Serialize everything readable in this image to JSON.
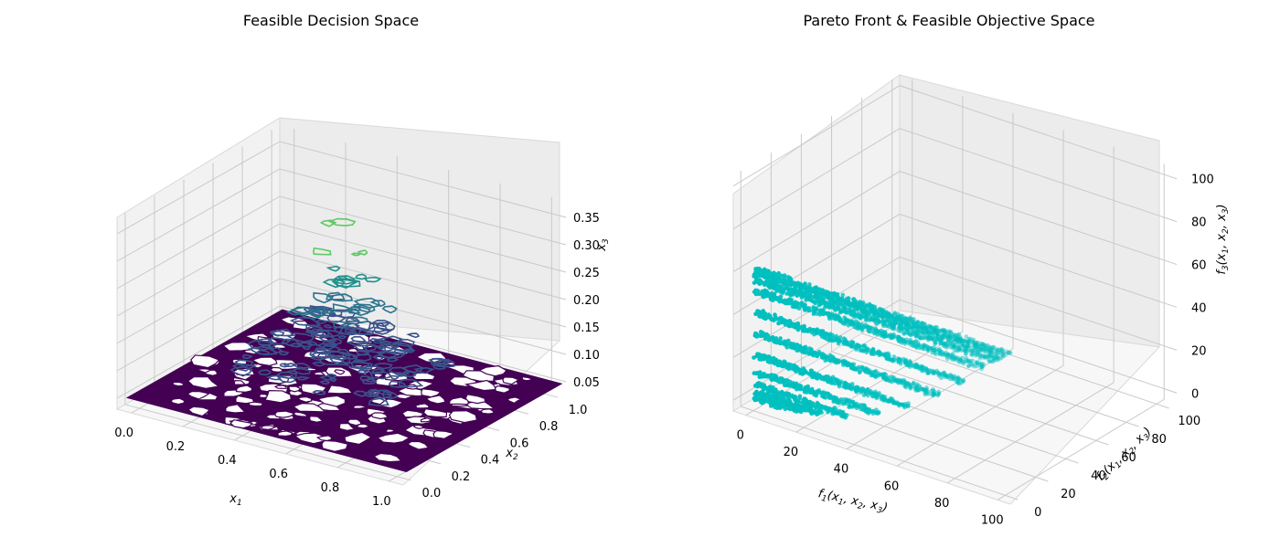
{
  "chart_data": [
    {
      "type": "3d-contour",
      "title": "Feasible Decision Space",
      "xlabel": "x_1",
      "ylabel": "x_2",
      "zlabel": "x_3",
      "xlim": [
        0,
        1
      ],
      "ylim": [
        0,
        1
      ],
      "zlim": [
        0.03,
        0.38
      ],
      "xticks": [
        "0.0",
        "0.2",
        "0.4",
        "0.6",
        "0.8",
        "1.0"
      ],
      "yticks": [
        "0.0",
        "0.2",
        "0.4",
        "0.6",
        "0.8",
        "1.0"
      ],
      "zticks": [
        "0.05",
        "0.10",
        "0.15",
        "0.20",
        "0.25",
        "0.30",
        "0.35"
      ],
      "colormap": [
        "#440154",
        "#3b528b",
        "#21918c",
        "#5ec962",
        "#a8d83b"
      ],
      "contour_levels": [
        {
          "z": 0.05,
          "color": "#440154",
          "coverage": 0.75
        },
        {
          "z": 0.1,
          "color": "#3b528b",
          "coverage": 0.35
        },
        {
          "z": 0.15,
          "color": "#3b528b",
          "coverage": 0.18
        },
        {
          "z": 0.2,
          "color": "#2c728e",
          "coverage": 0.08
        },
        {
          "z": 0.25,
          "color": "#21918c",
          "coverage": 0.03
        },
        {
          "z": 0.3,
          "color": "#5ec962",
          "coverage": 0.01
        },
        {
          "z": 0.35,
          "color": "#5ec962",
          "coverage": 0.005
        }
      ]
    },
    {
      "type": "3d-scatter",
      "title": "Pareto Front & Feasible Objective Space",
      "xlabel": "f_1(x_1, x_2, x_3)",
      "ylabel": "f_2(x_1, x_2, x_3)",
      "zlabel": "f_3(x_1, x_2, x_3)",
      "xlim": [
        -5,
        105
      ],
      "ylim": [
        -5,
        105
      ],
      "zlim": [
        -5,
        105
      ],
      "xticks": [
        "0",
        "20",
        "40",
        "60",
        "80",
        "100"
      ],
      "yticks": [
        "0",
        "20",
        "40",
        "60",
        "80",
        "100"
      ],
      "zticks": [
        "0",
        "20",
        "40",
        "60",
        "80",
        "100"
      ],
      "color": "#00bfbf",
      "bands": [
        {
          "f3": 0.0,
          "f1_max": 10
        },
        {
          "f3": 1.0,
          "f1_max": 18
        },
        {
          "f3": 2.5,
          "f1_max": 25
        },
        {
          "f3": 6.0,
          "f1_max": 36
        },
        {
          "f3": 12.0,
          "f1_max": 48
        },
        {
          "f3": 20.0,
          "f1_max": 60
        },
        {
          "f3": 30.0,
          "f1_max": 72
        },
        {
          "f3": 40.0,
          "f1_max": 82
        },
        {
          "f3": 50.0,
          "f1_max": 90
        },
        {
          "f3": 55.0,
          "f1_max": 95
        },
        {
          "f3": 58.0,
          "f1_max": 98
        },
        {
          "f3": 60.0,
          "f1_max": 100
        }
      ]
    }
  ]
}
